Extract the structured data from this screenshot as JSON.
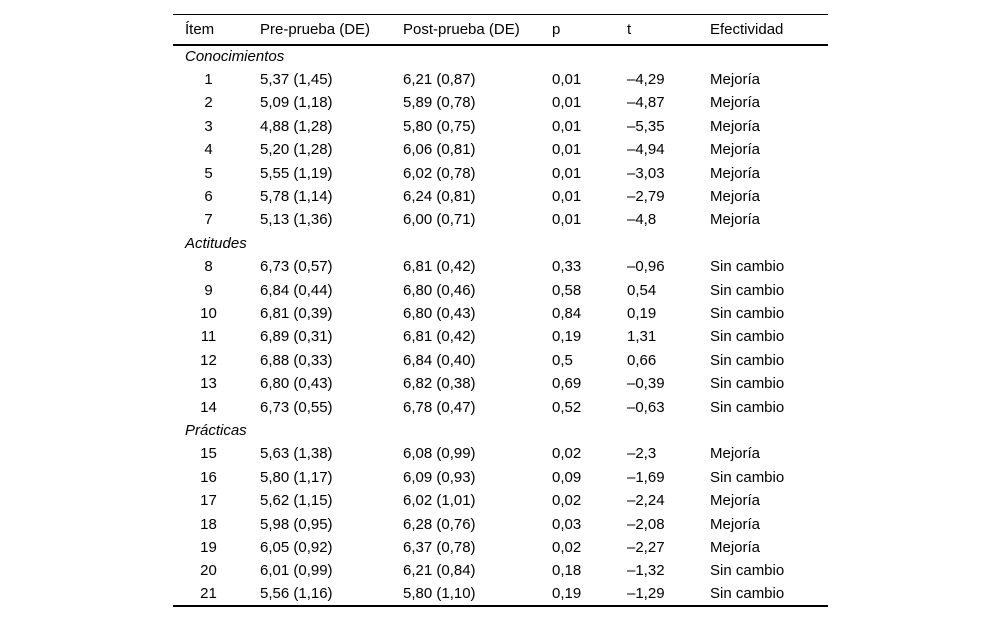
{
  "table": {
    "columns": [
      "Ítem",
      "Pre-prueba (DE)",
      "Post-prueba (DE)",
      "p",
      "t",
      "Efectividad"
    ],
    "sections": [
      {
        "label": "Conocimientos",
        "rows": [
          [
            "1",
            "5,37 (1,45)",
            "6,21 (0,87)",
            "0,01",
            "–4,29",
            "Mejoría"
          ],
          [
            "2",
            "5,09 (1,18)",
            "5,89 (0,78)",
            "0,01",
            "–4,87",
            "Mejoría"
          ],
          [
            "3",
            "4,88 (1,28)",
            "5,80 (0,75)",
            "0,01",
            "–5,35",
            "Mejoría"
          ],
          [
            "4",
            "5,20 (1,28)",
            "6,06 (0,81)",
            "0,01",
            "–4,94",
            "Mejoría"
          ],
          [
            "5",
            "5,55 (1,19)",
            "6,02 (0,78)",
            "0,01",
            "–3,03",
            "Mejoría"
          ],
          [
            "6",
            "5,78 (1,14)",
            "6,24 (0,81)",
            "0,01",
            "–2,79",
            "Mejoría"
          ],
          [
            "7",
            "5,13 (1,36)",
            "6,00 (0,71)",
            "0,01",
            "–4,8",
            "Mejoría"
          ]
        ]
      },
      {
        "label": "Actitudes",
        "rows": [
          [
            "8",
            "6,73 (0,57)",
            "6,81 (0,42)",
            "0,33",
            "–0,96",
            "Sin cambio"
          ],
          [
            "9",
            "6,84 (0,44)",
            "6,80 (0,46)",
            "0,58",
            "0,54",
            "Sin cambio"
          ],
          [
            "10",
            "6,81 (0,39)",
            "6,80 (0,43)",
            "0,84",
            "0,19",
            "Sin cambio"
          ],
          [
            "11",
            "6,89 (0,31)",
            "6,81 (0,42)",
            "0,19",
            "1,31",
            "Sin cambio"
          ],
          [
            "12",
            "6,88 (0,33)",
            "6,84 (0,40)",
            "0,5",
            "0,66",
            "Sin cambio"
          ],
          [
            "13",
            "6,80 (0,43)",
            "6,82 (0,38)",
            "0,69",
            "–0,39",
            "Sin cambio"
          ],
          [
            "14",
            "6,73 (0,55)",
            "6,78 (0,47)",
            "0,52",
            "–0,63",
            "Sin cambio"
          ]
        ]
      },
      {
        "label": "Prácticas",
        "rows": [
          [
            "15",
            "5,63 (1,38)",
            "6,08 (0,99)",
            "0,02",
            "–2,3",
            "Mejoría"
          ],
          [
            "16",
            "5,80 (1,17)",
            "6,09 (0,93)",
            "0,09",
            "–1,69",
            "Sin cambio"
          ],
          [
            "17",
            "5,62 (1,15)",
            "6,02 (1,01)",
            "0,02",
            "–2,24",
            "Mejoría"
          ],
          [
            "18",
            "5,98 (0,95)",
            "6,28 (0,76)",
            "0,03",
            "–2,08",
            "Mejoría"
          ],
          [
            "19",
            "6,05 (0,92)",
            "6,37 (0,78)",
            "0,02",
            "–2,27",
            "Mejoría"
          ],
          [
            "20",
            "6,01 (0,99)",
            "6,21 (0,84)",
            "0,18",
            "–1,32",
            "Sin cambio"
          ],
          [
            "21",
            "5,56 (1,16)",
            "5,80 (1,10)",
            "0,19",
            "–1,29",
            "Sin cambio"
          ]
        ]
      }
    ]
  }
}
